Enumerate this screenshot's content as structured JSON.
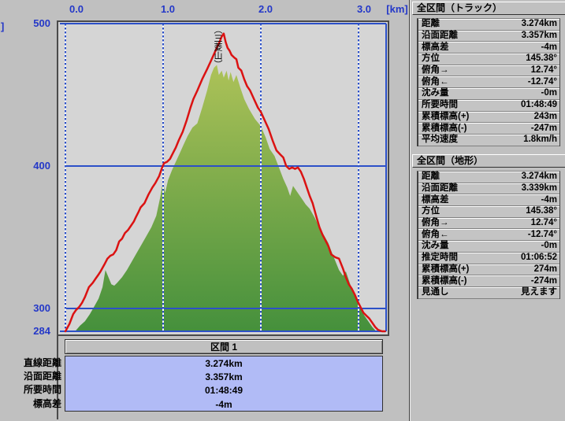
{
  "colors": {
    "window_bg": "#c0c0c0",
    "plot_bg": "#d5d5d5",
    "axis_text_blue": "#2438c8",
    "grid_blue": "#2c50c8",
    "track_red": "#db1212",
    "terrain_green_top": "#adc258",
    "terrain_green_bottom": "#45903c",
    "section_value_box_bg": "#b1bbf6"
  },
  "chart_data": {
    "type": "area",
    "title_annotation": "（三菱山）",
    "annotation_x_km": 1.56,
    "x_unit_label": "[km]",
    "y_unit_fragment": "]",
    "xlim": [
      0,
      3.31
    ],
    "ylim": [
      284,
      500
    ],
    "x_ticks": [
      0.0,
      1.0,
      2.0,
      3.0
    ],
    "x_tick_labels": [
      "0.0",
      "1.0",
      "2.0",
      "3.0"
    ],
    "y_ticks": [
      500,
      400,
      300,
      284
    ],
    "y_tick_labels": [
      "500",
      "400",
      "300",
      "284"
    ],
    "h_gridlines": [
      400,
      300
    ],
    "v_gridlines": [
      0,
      1,
      2,
      3
    ],
    "grid_color": "#2c50c8",
    "legend_position": "none",
    "series": [
      {
        "name": "terrain-profile",
        "type": "area",
        "gradient": [
          "#adc258",
          "#45903c"
        ],
        "points": [
          [
            0.1,
            284
          ],
          [
            0.15,
            288
          ],
          [
            0.2,
            291
          ],
          [
            0.25,
            296
          ],
          [
            0.3,
            302
          ],
          [
            0.34,
            307
          ],
          [
            0.38,
            315
          ],
          [
            0.41,
            327
          ],
          [
            0.44,
            322
          ],
          [
            0.47,
            317
          ],
          [
            0.5,
            316
          ],
          [
            0.53,
            318
          ],
          [
            0.58,
            322
          ],
          [
            0.63,
            327
          ],
          [
            0.68,
            333
          ],
          [
            0.73,
            339
          ],
          [
            0.78,
            345
          ],
          [
            0.83,
            351
          ],
          [
            0.88,
            357
          ],
          [
            0.93,
            365
          ],
          [
            0.97,
            378
          ],
          [
            1.0,
            390
          ],
          [
            1.02,
            381
          ],
          [
            1.05,
            390
          ],
          [
            1.09,
            397
          ],
          [
            1.13,
            403
          ],
          [
            1.17,
            409
          ],
          [
            1.21,
            415
          ],
          [
            1.25,
            421
          ],
          [
            1.3,
            427
          ],
          [
            1.35,
            430
          ],
          [
            1.4,
            441
          ],
          [
            1.45,
            453
          ],
          [
            1.49,
            464
          ],
          [
            1.52,
            469
          ],
          [
            1.55,
            471
          ],
          [
            1.57,
            464
          ],
          [
            1.6,
            467
          ],
          [
            1.62,
            462
          ],
          [
            1.65,
            467
          ],
          [
            1.67,
            460
          ],
          [
            1.69,
            466
          ],
          [
            1.72,
            459
          ],
          [
            1.75,
            464
          ],
          [
            1.79,
            455
          ],
          [
            1.83,
            447
          ],
          [
            1.88,
            440
          ],
          [
            1.94,
            433
          ],
          [
            2.0,
            428
          ],
          [
            2.05,
            420
          ],
          [
            2.09,
            412
          ],
          [
            2.14,
            407
          ],
          [
            2.18,
            400
          ],
          [
            2.23,
            391
          ],
          [
            2.27,
            385
          ],
          [
            2.3,
            379
          ],
          [
            2.33,
            386
          ],
          [
            2.37,
            382
          ],
          [
            2.42,
            377
          ],
          [
            2.46,
            373
          ],
          [
            2.5,
            370
          ],
          [
            2.55,
            364
          ],
          [
            2.6,
            357
          ],
          [
            2.65,
            351
          ],
          [
            2.69,
            346
          ],
          [
            2.74,
            337
          ],
          [
            2.8,
            327
          ],
          [
            2.84,
            323
          ],
          [
            2.87,
            326
          ],
          [
            2.91,
            318
          ],
          [
            2.94,
            312
          ],
          [
            2.98,
            307
          ],
          [
            3.02,
            300
          ],
          [
            3.06,
            295
          ],
          [
            3.1,
            291
          ],
          [
            3.14,
            287
          ],
          [
            3.18,
            284
          ]
        ]
      },
      {
        "name": "gps-track",
        "type": "line",
        "color": "#db1212",
        "points": [
          [
            0.0,
            284
          ],
          [
            0.04,
            289
          ],
          [
            0.08,
            296
          ],
          [
            0.11,
            299
          ],
          [
            0.14,
            301
          ],
          [
            0.17,
            304
          ],
          [
            0.2,
            308
          ],
          [
            0.24,
            315
          ],
          [
            0.28,
            318
          ],
          [
            0.31,
            321
          ],
          [
            0.34,
            324
          ],
          [
            0.36,
            326
          ],
          [
            0.4,
            331
          ],
          [
            0.43,
            335
          ],
          [
            0.46,
            337
          ],
          [
            0.49,
            338
          ],
          [
            0.52,
            341
          ],
          [
            0.55,
            347
          ],
          [
            0.58,
            349
          ],
          [
            0.61,
            353
          ],
          [
            0.64,
            355
          ],
          [
            0.67,
            358
          ],
          [
            0.7,
            361
          ],
          [
            0.72,
            364
          ],
          [
            0.75,
            368
          ],
          [
            0.77,
            371
          ],
          [
            0.81,
            374
          ],
          [
            0.85,
            380
          ],
          [
            0.89,
            385
          ],
          [
            0.92,
            388
          ],
          [
            0.96,
            393
          ],
          [
            0.99,
            399
          ],
          [
            1.01,
            402
          ],
          [
            1.04,
            403
          ],
          [
            1.07,
            405
          ],
          [
            1.1,
            409
          ],
          [
            1.13,
            413
          ],
          [
            1.16,
            418
          ],
          [
            1.2,
            424
          ],
          [
            1.24,
            432
          ],
          [
            1.28,
            441
          ],
          [
            1.31,
            447
          ],
          [
            1.35,
            453
          ],
          [
            1.4,
            461
          ],
          [
            1.45,
            468
          ],
          [
            1.49,
            474
          ],
          [
            1.53,
            480
          ],
          [
            1.57,
            486
          ],
          [
            1.6,
            491
          ],
          [
            1.62,
            493
          ],
          [
            1.64,
            487
          ],
          [
            1.66,
            483
          ],
          [
            1.68,
            481
          ],
          [
            1.7,
            478
          ],
          [
            1.73,
            476
          ],
          [
            1.75,
            475
          ],
          [
            1.77,
            469
          ],
          [
            1.8,
            467
          ],
          [
            1.83,
            461
          ],
          [
            1.86,
            456
          ],
          [
            1.89,
            453
          ],
          [
            1.93,
            447
          ],
          [
            1.97,
            441
          ],
          [
            2.0,
            438
          ],
          [
            2.04,
            432
          ],
          [
            2.08,
            426
          ],
          [
            2.12,
            418
          ],
          [
            2.16,
            411
          ],
          [
            2.2,
            408
          ],
          [
            2.23,
            406
          ],
          [
            2.26,
            400
          ],
          [
            2.29,
            398
          ],
          [
            2.32,
            399
          ],
          [
            2.35,
            398
          ],
          [
            2.38,
            399
          ],
          [
            2.41,
            396
          ],
          [
            2.44,
            391
          ],
          [
            2.47,
            385
          ],
          [
            2.5,
            379
          ],
          [
            2.53,
            374
          ],
          [
            2.57,
            364
          ],
          [
            2.6,
            357
          ],
          [
            2.63,
            352
          ],
          [
            2.66,
            348
          ],
          [
            2.69,
            344
          ],
          [
            2.72,
            338
          ],
          [
            2.76,
            336
          ],
          [
            2.8,
            335
          ],
          [
            2.84,
            328
          ],
          [
            2.87,
            322
          ],
          [
            2.9,
            317
          ],
          [
            2.93,
            314
          ],
          [
            2.96,
            310
          ],
          [
            2.99,
            305
          ],
          [
            3.02,
            301
          ],
          [
            3.05,
            297
          ],
          [
            3.08,
            295
          ],
          [
            3.11,
            293
          ],
          [
            3.14,
            290
          ],
          [
            3.17,
            287
          ],
          [
            3.2,
            285
          ],
          [
            3.24,
            284
          ],
          [
            3.27,
            284
          ]
        ]
      }
    ]
  },
  "right_panels": [
    {
      "title": "全区間（トラック）",
      "rows": [
        {
          "label": "距離",
          "value": "3.274km"
        },
        {
          "label": "沿面距離",
          "value": "3.357km"
        },
        {
          "label": "標高差",
          "value": "-4m"
        },
        {
          "label": "方位",
          "value": "145.38°"
        },
        {
          "label": "俯角→",
          "value": "12.74°"
        },
        {
          "label": "俯角←",
          "value": "-12.74°"
        },
        {
          "label": "沈み量",
          "value": "-0m"
        },
        {
          "label": "所要時間",
          "value": "01:48:49"
        },
        {
          "label": "累積標高(+)",
          "value": "243m"
        },
        {
          "label": "累積標高(-)",
          "value": "-247m"
        },
        {
          "label": "平均速度",
          "value": "1.8km/h"
        }
      ]
    },
    {
      "title": "全区間（地形）",
      "rows": [
        {
          "label": "距離",
          "value": "3.274km"
        },
        {
          "label": "沿面距離",
          "value": "3.339km"
        },
        {
          "label": "標高差",
          "value": "-4m"
        },
        {
          "label": "方位",
          "value": "145.38°"
        },
        {
          "label": "俯角→",
          "value": "12.74°"
        },
        {
          "label": "俯角←",
          "value": "-12.74°"
        },
        {
          "label": "沈み量",
          "value": "-0m"
        },
        {
          "label": "推定時間",
          "value": "01:06:52"
        },
        {
          "label": "累積標高(+)",
          "value": "274m"
        },
        {
          "label": "累積標高(-)",
          "value": "-274m"
        },
        {
          "label": "見通し",
          "value": "見えます"
        }
      ]
    }
  ],
  "section_panel": {
    "header": "区間 1",
    "row_labels": [
      "直線距離",
      "沿面距離",
      "所要時間",
      "標高差"
    ],
    "values": [
      "3.274km",
      "3.357km",
      "01:48:49",
      "-4m"
    ]
  }
}
